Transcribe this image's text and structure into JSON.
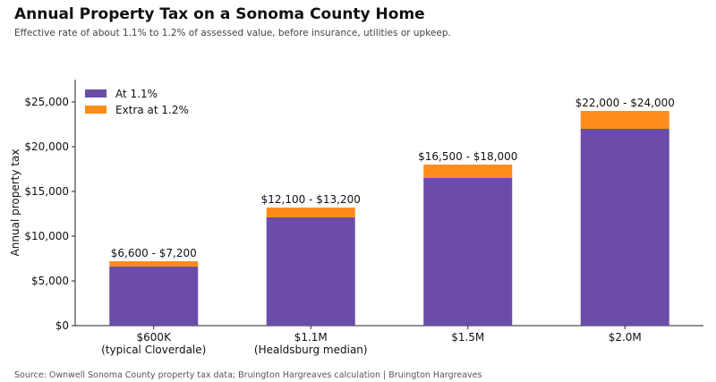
{
  "title": "Annual Property Tax on a Sonoma County Home",
  "subtitle": "Effective rate of about 1.1% to 1.2% of assessed value, before insurance, utilities or upkeep.",
  "source": "Source: Ownwell Sonoma County property tax data; Bruington Hargreaves calculation | Bruington Hargreaves",
  "colors": {
    "base": "#6b4ca8",
    "extra": "#ff8c1a"
  },
  "chart_data": {
    "type": "bar",
    "stacked": true,
    "categories": [
      [
        "$600K",
        "(typical Cloverdale)"
      ],
      [
        "$1.1M",
        "(Healdsburg median)"
      ],
      [
        "$1.5M"
      ],
      [
        "$2.0M"
      ]
    ],
    "series": [
      {
        "name": "At 1.1%",
        "values": [
          6600,
          12100,
          16500,
          22000
        ]
      },
      {
        "name": "Extra at 1.2%",
        "values": [
          600,
          1100,
          1500,
          2000
        ]
      }
    ],
    "data_labels": [
      "$6,600 - $7,200",
      "$12,100 - $13,200",
      "$16,500 - $18,000",
      "$22,000 - $24,000"
    ],
    "ylabel": "Annual property tax",
    "xlabel": "",
    "ylim": [
      0,
      27500
    ],
    "yticks": [
      0,
      5000,
      10000,
      15000,
      20000,
      25000
    ],
    "ytick_labels": [
      "$0",
      "$5,000",
      "$10,000",
      "$15,000",
      "$20,000",
      "$25,000"
    ],
    "grid": false,
    "legend_position": "top-left"
  }
}
